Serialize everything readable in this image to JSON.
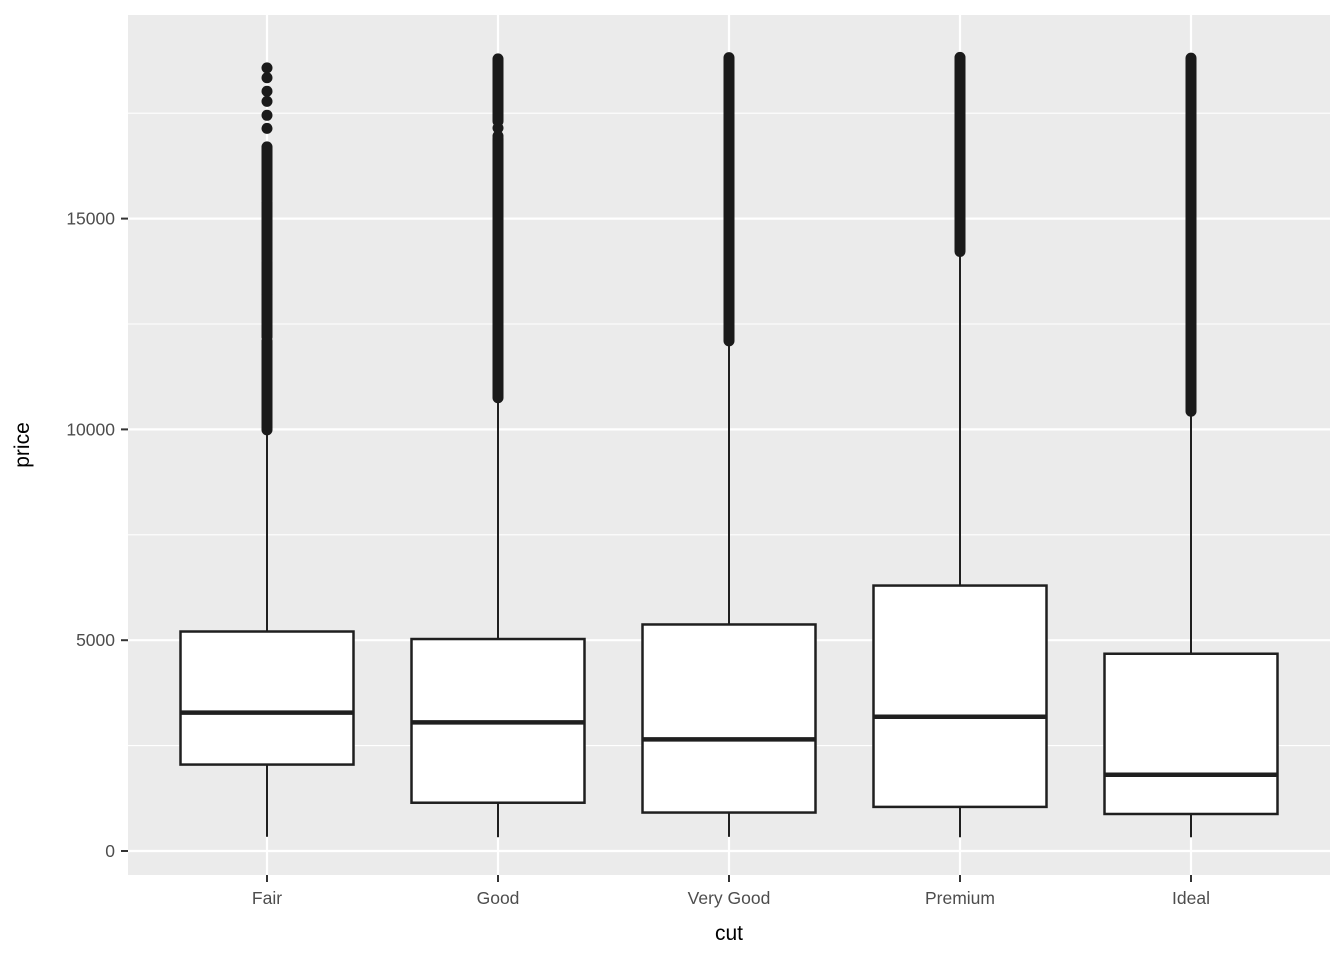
{
  "figure": {
    "background_color": "#FFFFFF",
    "panel_color": "#EBEBEB",
    "gridline_color": "#FFFFFF",
    "box_fill_color": "#FFFFFF",
    "box_stroke_color": "#1F1F1F",
    "outlier_color": "#1A1A1A",
    "tick_mark_color": "#333333",
    "tick_label_color": "#4D4D4D",
    "axis_title_color": "#000000"
  },
  "chart_data": {
    "type": "boxplot",
    "title": "",
    "xlabel": "cut",
    "ylabel": "price",
    "categories": [
      "Fair",
      "Good",
      "Very Good",
      "Premium",
      "Ideal"
    ],
    "y_ticks": [
      0,
      5000,
      10000,
      15000
    ],
    "y_tick_labels": [
      "0",
      "5000",
      "10000",
      "15000"
    ],
    "y_minor_ticks": [
      2500,
      7500,
      12500,
      17500
    ],
    "ylim": [
      -599,
      19748
    ],
    "grid": "major-and-minor",
    "legend_position": "none",
    "series": [
      {
        "category": "Fair",
        "whisker_low": 337,
        "q1": 2050,
        "median": 3282,
        "q3": 5206,
        "whisker_high": 9938,
        "outlier_points": [
          18574,
          18340,
          18020,
          17780,
          17450,
          17140
        ],
        "outlier_segments": [
          [
            15440,
            16700
          ],
          [
            14490,
            15390
          ],
          [
            14020,
            14460
          ],
          [
            13230,
            13970
          ],
          [
            12190,
            13210
          ],
          [
            9990,
            12100
          ]
        ]
      },
      {
        "category": "Good",
        "whisker_low": 327,
        "q1": 1145,
        "median": 3050,
        "q3": 5028,
        "whisker_high": 10686,
        "outlier_points": [
          17150,
          16960
        ],
        "outlier_segments": [
          [
            17310,
            18788
          ],
          [
            10750,
            16900
          ]
        ]
      },
      {
        "category": "Very Good",
        "whisker_low": 336,
        "q1": 912,
        "median": 2648,
        "q3": 5373,
        "whisker_high": 12064,
        "outlier_points": [],
        "outlier_segments": [
          [
            12100,
            18818
          ]
        ]
      },
      {
        "category": "Premium",
        "whisker_low": 326,
        "q1": 1046,
        "median": 3185,
        "q3": 6296,
        "whisker_high": 14171,
        "outlier_points": [],
        "outlier_segments": [
          [
            14220,
            18823
          ]
        ]
      },
      {
        "category": "Ideal",
        "whisker_low": 326,
        "q1": 878,
        "median": 1810,
        "q3": 4679,
        "whisker_high": 10379,
        "outlier_points": [],
        "outlier_segments": [
          [
            10430,
            18806
          ]
        ]
      }
    ]
  }
}
